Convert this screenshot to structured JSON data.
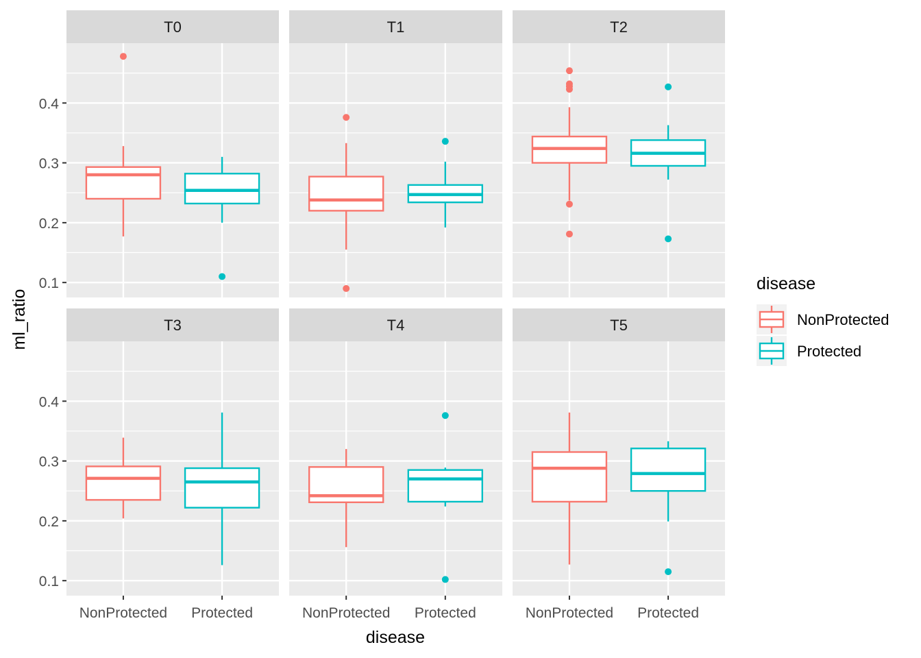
{
  "chart_data": {
    "type": "boxplot",
    "facet_by": "time",
    "facets": [
      {
        "label": "T0",
        "boxes": [
          {
            "category": "NonProtected",
            "q1": 0.24,
            "median": 0.28,
            "q3": 0.293,
            "whisker_low": 0.177,
            "whisker_high": 0.328,
            "outliers": [
              0.478
            ]
          },
          {
            "category": "Protected",
            "q1": 0.232,
            "median": 0.254,
            "q3": 0.282,
            "whisker_low": 0.2,
            "whisker_high": 0.31,
            "outliers": [
              0.11
            ]
          }
        ]
      },
      {
        "label": "T1",
        "boxes": [
          {
            "category": "NonProtected",
            "q1": 0.22,
            "median": 0.238,
            "q3": 0.277,
            "whisker_low": 0.155,
            "whisker_high": 0.333,
            "outliers": [
              0.376,
              0.09
            ]
          },
          {
            "category": "Protected",
            "q1": 0.234,
            "median": 0.247,
            "q3": 0.263,
            "whisker_low": 0.192,
            "whisker_high": 0.302,
            "outliers": [
              0.336
            ]
          }
        ]
      },
      {
        "label": "T2",
        "boxes": [
          {
            "category": "NonProtected",
            "q1": 0.3,
            "median": 0.324,
            "q3": 0.344,
            "whisker_low": 0.237,
            "whisker_high": 0.393,
            "outliers": [
              0.454,
              0.432,
              0.428,
              0.423,
              0.231,
              0.181
            ]
          },
          {
            "category": "Protected",
            "q1": 0.295,
            "median": 0.316,
            "q3": 0.338,
            "whisker_low": 0.272,
            "whisker_high": 0.363,
            "outliers": [
              0.427,
              0.173
            ]
          }
        ]
      },
      {
        "label": "T3",
        "boxes": [
          {
            "category": "NonProtected",
            "q1": 0.235,
            "median": 0.271,
            "q3": 0.291,
            "whisker_low": 0.204,
            "whisker_high": 0.339,
            "outliers": []
          },
          {
            "category": "Protected",
            "q1": 0.222,
            "median": 0.265,
            "q3": 0.288,
            "whisker_low": 0.126,
            "whisker_high": 0.381,
            "outliers": []
          }
        ]
      },
      {
        "label": "T4",
        "boxes": [
          {
            "category": "NonProtected",
            "q1": 0.231,
            "median": 0.242,
            "q3": 0.29,
            "whisker_low": 0.156,
            "whisker_high": 0.32,
            "outliers": []
          },
          {
            "category": "Protected",
            "q1": 0.232,
            "median": 0.27,
            "q3": 0.285,
            "whisker_low": 0.224,
            "whisker_high": 0.289,
            "outliers": [
              0.376,
              0.102
            ]
          }
        ]
      },
      {
        "label": "T5",
        "boxes": [
          {
            "category": "NonProtected",
            "q1": 0.232,
            "median": 0.288,
            "q3": 0.315,
            "whisker_low": 0.127,
            "whisker_high": 0.381,
            "outliers": []
          },
          {
            "category": "Protected",
            "q1": 0.25,
            "median": 0.279,
            "q3": 0.321,
            "whisker_low": 0.199,
            "whisker_high": 0.333,
            "outliers": [
              0.115
            ]
          }
        ]
      }
    ],
    "categories": [
      "NonProtected",
      "Protected"
    ],
    "ylim": [
      0.075,
      0.5
    ],
    "y_ticks": [
      0.1,
      0.2,
      0.3,
      0.4
    ],
    "y_tick_labels": [
      "0.1",
      "0.2",
      "0.3",
      "0.4"
    ],
    "xlabel": "disease",
    "ylabel": "ml_ratio",
    "grid": true,
    "legend": {
      "title": "disease",
      "position": "right",
      "entries": [
        {
          "label": "NonProtected",
          "color": "#F8766D"
        },
        {
          "label": "Protected",
          "color": "#00BFC4"
        }
      ]
    },
    "colors": {
      "NonProtected": "#F8766D",
      "Protected": "#00BFC4",
      "panel_bg": "#EBEBEB",
      "strip_bg": "#D9D9D9",
      "grid": "#FFFFFF"
    }
  }
}
